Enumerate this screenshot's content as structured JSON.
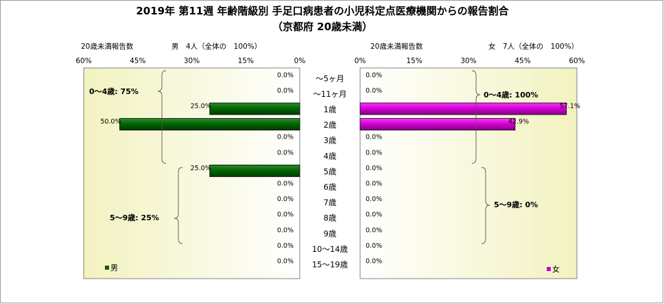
{
  "chart_data": {
    "type": "bar",
    "title": "2019年 第11週 年齢階級別 手足口病患者の小児科定点医療機関からの報告割合",
    "subtitle": "（京都府 20歳未満）",
    "categories": [
      "～5ヶ月",
      "～11ヶ月",
      "1歳",
      "2歳",
      "3歳",
      "4歳",
      "5歳",
      "6歳",
      "7歳",
      "8歳",
      "9歳",
      "10～14歳",
      "15～19歳"
    ],
    "male": {
      "header_label": "20歳未満報告数",
      "header_count": "男　4人（全体の　100%）",
      "legend": "男",
      "color": "#006400",
      "axis_ticks": [
        "60%",
        "45%",
        "30%",
        "15%",
        "0%"
      ],
      "xlim": [
        0,
        60
      ],
      "values": [
        0.0,
        0.0,
        25.0,
        50.0,
        0.0,
        0.0,
        25.0,
        0.0,
        0.0,
        0.0,
        0.0,
        0.0,
        0.0
      ],
      "value_labels": [
        "0.0%",
        "0.0%",
        "25.0%",
        "50.0%",
        "0.0%",
        "0.0%",
        "25.0%",
        "0.0%",
        "0.0%",
        "0.0%",
        "0.0%",
        "0.0%",
        "0.0%"
      ],
      "annotations": [
        "0～4歳: 75%",
        "5～9歳: 25%"
      ]
    },
    "female": {
      "header_label": "20歳未満報告数",
      "header_count": "女　7人（全体の　100%）",
      "legend": "女",
      "color": "#CC00CC",
      "axis_ticks": [
        "0%",
        "15%",
        "30%",
        "45%",
        "60%"
      ],
      "xlim": [
        0,
        60
      ],
      "values": [
        0.0,
        0.0,
        57.1,
        42.9,
        0.0,
        0.0,
        0.0,
        0.0,
        0.0,
        0.0,
        0.0,
        0.0,
        0.0
      ],
      "value_labels": [
        "0.0%",
        "0.0%",
        "57.1%",
        "42.9%",
        "0.0%",
        "0.0%",
        "0.0%",
        "0.0%",
        "0.0%",
        "0.0%",
        "0.0%",
        "0.0%",
        "0.0%"
      ],
      "annotations": [
        "0～4歳: 100%",
        "5～9歳: 0%"
      ]
    }
  }
}
